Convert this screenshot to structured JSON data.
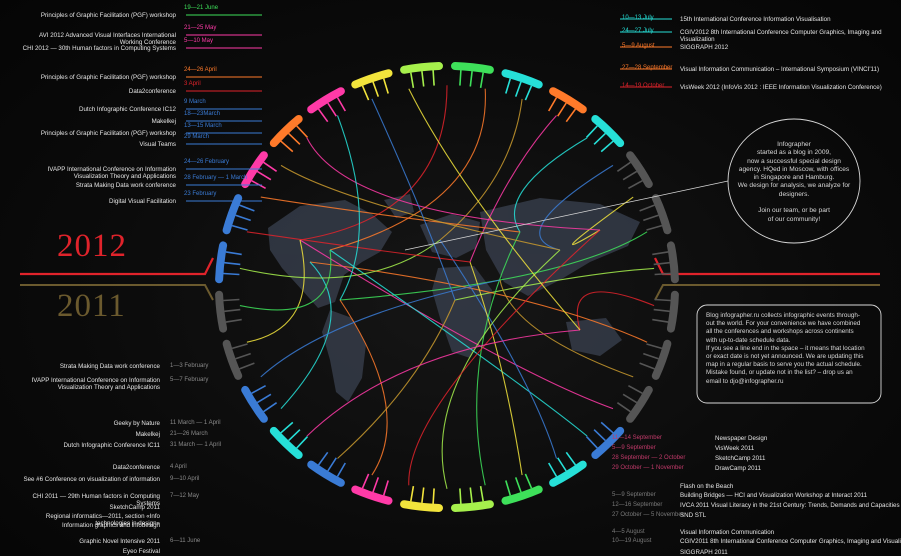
{
  "years": {
    "current": "2012",
    "previous": "2011"
  },
  "colors": {
    "red": "#e0232b",
    "orange": "#ff7a2a",
    "gold": "#c99a2e",
    "magenta": "#ff3aa7",
    "cyan": "#26e0d8",
    "blue": "#3a7bd5",
    "yellow": "#f2e43c",
    "green": "#3ee05a",
    "lime": "#a6f04c",
    "gray": "#555555"
  },
  "events_2012_left": [
    {
      "name": "Principles of Graphic Facilitation (PGF) workshop",
      "date": "19—21 June"
    },
    {
      "name": "AVI 2012 Advanced Visual Interfaces International Working Conference",
      "date": "21—25 May"
    },
    {
      "name": "CHI 2012 — 30th Human factors in Computing Systems",
      "date": "5—10 May"
    },
    {
      "name": "Principles of Graphic Facilitation (PGF) workshop",
      "date": "24—26 April"
    },
    {
      "name": "Data2conference",
      "date": "3 April"
    },
    {
      "name": "Dutch Infographic Conference IC12",
      "date": "9 March"
    },
    {
      "name": "Makelkej",
      "date": "18—23March"
    },
    {
      "name": "Principles of Graphic Facilitation (PGF) workshop",
      "date": "13—15 March"
    },
    {
      "name": "Visual Teams",
      "date": "29 March"
    },
    {
      "name": "IVAPP International Conference on Information Visualization Theory and Applications",
      "date": "24—26 February"
    },
    {
      "name": "Strata Making Data work conference",
      "date": "28 February — 1 March"
    },
    {
      "name": "Digital Visual Facilitation",
      "date": "23 February"
    }
  ],
  "events_2012_right": [
    {
      "name": "15th International Conference Information Visualisation",
      "date": "10—13 July"
    },
    {
      "name": "CGIV2012 8th International Conference Computer Graphics, Imaging and Visualization",
      "date": "24—27 July"
    },
    {
      "name": "SIGGRAPH 2012",
      "date": "5—9 August"
    },
    {
      "name": "Visual Information Communication – International Symposium (VINCI'11)",
      "date": "27—28 September"
    },
    {
      "name": "VisWeek 2012 (InfoVis 2012 : IEEE Information Visualization Conference)",
      "date": "14—19 October"
    }
  ],
  "events_2011_left": [
    {
      "name": "Strata Making Data work conference",
      "date": "1—3 February"
    },
    {
      "name": "IVAPP International Conference on Information Visualization Theory and Applications",
      "date": "5—7 February"
    },
    {
      "name": "Geeky by Nature",
      "date": "11 March — 1 April"
    },
    {
      "name": "Makelkej",
      "date": "21—26 March"
    },
    {
      "name": "Dutch Infographic Conference IC11",
      "date": "31 March — 1 April"
    },
    {
      "name": "Data2conference",
      "date": "4 April"
    },
    {
      "name": "See #6 Conference on visualization of information",
      "date": "9—10 April"
    },
    {
      "name": "CHI 2011 — 29th Human factors in Computing Systems",
      "date": "7—12 May"
    },
    {
      "name": "SketchCamp 2011",
      "date": ""
    },
    {
      "name": "Regional informatics—2011, section «Info technologies in design»",
      "date": ""
    },
    {
      "name": "Information graphics and infodesign",
      "date": ""
    },
    {
      "name": "Graphic Novel Intensive 2011",
      "date": "6—11 June"
    },
    {
      "name": "Eyeo Festival",
      "date": ""
    }
  ],
  "events_2011_right": [
    {
      "name": "Newspaper Design",
      "date": "11—14 September"
    },
    {
      "name": "VisWeek 2011",
      "date": "5—9 September"
    },
    {
      "name": "SketchCamp 2011",
      "date": "28 September — 2 October"
    },
    {
      "name": "DrawCamp 2011",
      "date": "29 October — 1 November"
    },
    {
      "name": "Flash on the Beach",
      "date": ""
    },
    {
      "name": "Building Bridges — HCI and Visualization Workshop at Interact 2011",
      "date": "5—9 September"
    },
    {
      "name": "IVCA 2011 Visual Literacy in the 21st Century: Trends, Demands and Capacities",
      "date": "12—16 September"
    },
    {
      "name": "SND STL",
      "date": "27 October — 5 November"
    },
    {
      "name": "Visual Information Communication",
      "date": "4—5 August"
    },
    {
      "name": "CGIV2011 8th International Conference Computer Graphics, Imaging and Visualization",
      "date": "10—19 August"
    },
    {
      "name": "SIGGRAPH 2011",
      "date": ""
    }
  ],
  "about_text": [
    "Infographer",
    "started as a blog in 2009,",
    "now a successful special design",
    "agency. HQed in Moscow, with offices",
    "in Singapore and Hamburg.",
    "We design for analysis, we analyze for",
    "designers.",
    "",
    "Join our team, or be part",
    "of our community!"
  ],
  "blog_text": [
    "Blog infographer.ru collects infographic events through-",
    "out the world. For your convenience we have combined",
    "all the conferences and workshops across continents",
    "with up-to-date schedule data.",
    "If you see a line end in the space – it means that location",
    "or exact date is not yet announced. We are updating this",
    "map in a regular basis to serve you the actual schedule.",
    "Mistake found, or update not in the list? – drop us an",
    "email to djo@infographer.ru"
  ]
}
